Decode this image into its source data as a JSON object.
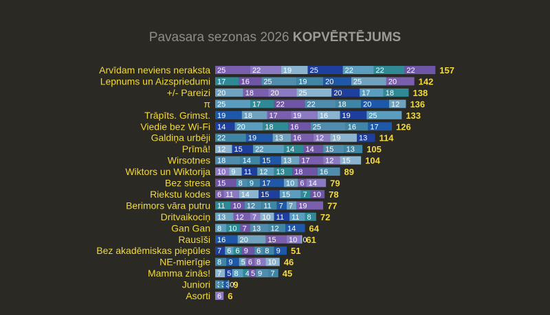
{
  "title": {
    "prefix": "Pavasara sezonas 2026",
    "emphasis": "KOPVĒRTĒJUMS"
  },
  "colors": {
    "background": "#2a2924",
    "team_label": "#f2d93c",
    "total": "#f2d93c",
    "segments": [
      "#7a5fae",
      "#1e58a8",
      "#4f8cae",
      "#2f8a96",
      "#1f3f9e",
      "#8c79c4",
      "#6fa2bf",
      "#3f86a6",
      "#6e55a6",
      "#5a9dbe",
      "#8ab4d0"
    ]
  },
  "chart_data": {
    "type": "bar",
    "orientation": "horizontal",
    "stacked": true,
    "title": "Pavasara sezonas 2026 KOPVĒRTĒJUMS",
    "categories": [
      "Arvīdam neviens neraksta",
      "Lepnums un Aizspriedumi",
      "+/- Pareizi",
      "π",
      "Trāpīts. Grimst.",
      "Viedie bez Wi-Fi",
      "Galdiņa urbēji",
      "Prīmā!",
      "Wirsotnes",
      "Wiktors un Wiktorija",
      "Bez stresa",
      "Riekstu kodes",
      "Berimors vāra putru",
      "Dritvaikociņ",
      "Gan Gan",
      "Rausīši",
      "Bez akadēmiskas piepūles",
      "NE-mierīgie",
      "Mamma zinās!",
      "Juniori",
      "Asorti"
    ],
    "rounds": [
      [
        25,
        22,
        19,
        25,
        22,
        22,
        22
      ],
      [
        17,
        16,
        25,
        19,
        20,
        25,
        20
      ],
      [
        20,
        18,
        20,
        25,
        20,
        17,
        18
      ],
      [
        25,
        17,
        22,
        22,
        18,
        20,
        12
      ],
      [
        19,
        18,
        17,
        19,
        16,
        19,
        25
      ],
      [
        14,
        20,
        18,
        16,
        25,
        16,
        17
      ],
      [
        22,
        19,
        13,
        16,
        12,
        19,
        13
      ],
      [
        12,
        15,
        22,
        14,
        14,
        15,
        13
      ],
      [
        18,
        14,
        15,
        13,
        17,
        12,
        15
      ],
      [
        10,
        9,
        11,
        12,
        13,
        18,
        16
      ],
      [
        15,
        8,
        9,
        17,
        10,
        6,
        14
      ],
      [
        6,
        11,
        14,
        15,
        15,
        7,
        10
      ],
      [
        11,
        10,
        12,
        11,
        7,
        7,
        19
      ],
      [
        13,
        12,
        7,
        10,
        11,
        11,
        8
      ],
      [
        8,
        10,
        7,
        13,
        12,
        14
      ],
      [
        16,
        20,
        15,
        10,
        0
      ],
      [
        7,
        6,
        6,
        9,
        6,
        8,
        9
      ],
      [
        8,
        9,
        5,
        6,
        8,
        10
      ],
      [
        7,
        5,
        8,
        4,
        5,
        9,
        7
      ],
      [
        3,
        3,
        3,
        0
      ],
      [
        6
      ]
    ],
    "totals": [
      157,
      142,
      138,
      136,
      133,
      126,
      114,
      105,
      104,
      89,
      79,
      78,
      77,
      72,
      64,
      61,
      51,
      46,
      45,
      9,
      6
    ],
    "xlim": [
      0,
      160
    ]
  }
}
